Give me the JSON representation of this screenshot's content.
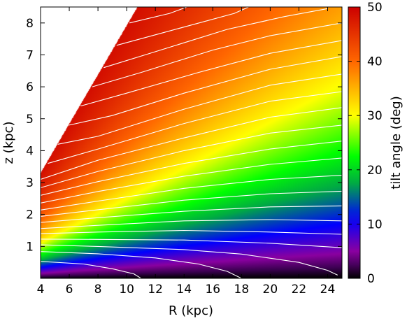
{
  "chart_data": {
    "type": "heatmap",
    "xlabel": "R (kpc)",
    "ylabel": "z (kpc)",
    "colorbar_label": "tilt angle (deg)",
    "xlim": [
      4,
      25
    ],
    "ylim": [
      0,
      8.5
    ],
    "clim": [
      0,
      50
    ],
    "x_ticks": [
      4,
      6,
      8,
      10,
      12,
      14,
      16,
      18,
      20,
      22,
      24
    ],
    "y_ticks": [
      1,
      2,
      3,
      4,
      5,
      6,
      7,
      8
    ],
    "colorbar_ticks": [
      0,
      10,
      20,
      30,
      40,
      50
    ],
    "colormap": [
      "#000000",
      "#3a0050",
      "#8a00a0",
      "#0000ff",
      "#00aa44",
      "#00ff00",
      "#ffff00",
      "#ff6600",
      "#cc0000"
    ],
    "colormap_stops": [
      0,
      0.04,
      0.1,
      0.22,
      0.35,
      0.45,
      0.6,
      0.8,
      1
    ],
    "masked_region": "no data above z = 0.77 * (R - 4) + 3.3 (white)",
    "contour_color": "#ffffff",
    "contours": [
      {
        "level": 1,
        "points": [
          [
            4,
            0.53
          ],
          [
            7,
            0.45
          ],
          [
            9,
            0.3
          ],
          [
            10.5,
            0.14
          ],
          [
            11,
            0.0
          ]
        ]
      },
      {
        "level": 2,
        "points": [
          [
            4,
            0.84
          ],
          [
            8,
            0.77
          ],
          [
            12,
            0.64
          ],
          [
            15,
            0.45
          ],
          [
            17,
            0.22
          ],
          [
            18,
            0.0
          ]
        ]
      },
      {
        "level": 3,
        "points": [
          [
            4,
            1.05
          ],
          [
            8,
            1.0
          ],
          [
            14,
            0.9
          ],
          [
            18,
            0.76
          ],
          [
            22,
            0.5
          ],
          [
            24,
            0.25
          ],
          [
            24.7,
            0.1
          ]
        ]
      },
      {
        "level": 4,
        "points": [
          [
            4,
            1.23
          ],
          [
            8,
            1.22
          ],
          [
            14,
            1.2
          ],
          [
            20,
            1.1
          ],
          [
            25,
            0.96
          ]
        ]
      },
      {
        "level": 5,
        "points": [
          [
            4,
            1.4
          ],
          [
            8,
            1.45
          ],
          [
            14,
            1.5
          ],
          [
            20,
            1.45
          ],
          [
            25,
            1.38
          ]
        ]
      },
      {
        "level": 6,
        "points": [
          [
            4,
            1.56
          ],
          [
            8,
            1.66
          ],
          [
            14,
            1.8
          ],
          [
            20,
            1.84
          ],
          [
            25,
            1.8
          ]
        ]
      },
      {
        "level": 7,
        "points": [
          [
            4,
            1.75
          ],
          [
            8,
            1.9
          ],
          [
            14,
            2.1
          ],
          [
            20,
            2.24
          ],
          [
            25,
            2.27
          ]
        ]
      },
      {
        "level": 8,
        "points": [
          [
            4,
            1.94
          ],
          [
            8,
            2.15
          ],
          [
            14,
            2.45
          ],
          [
            20,
            2.65
          ],
          [
            25,
            2.73
          ]
        ]
      },
      {
        "level": 9,
        "points": [
          [
            4,
            2.14
          ],
          [
            8,
            2.42
          ],
          [
            14,
            2.82
          ],
          [
            20,
            3.1
          ],
          [
            25,
            3.23
          ]
        ]
      },
      {
        "level": 10,
        "points": [
          [
            4,
            2.36
          ],
          [
            8,
            2.72
          ],
          [
            14,
            3.2
          ],
          [
            20,
            3.57
          ],
          [
            25,
            3.77
          ]
        ]
      },
      {
        "level": 11,
        "points": [
          [
            4,
            2.6
          ],
          [
            8,
            3.03
          ],
          [
            14,
            3.6
          ],
          [
            20,
            4.05
          ],
          [
            25,
            4.3
          ]
        ]
      },
      {
        "level": 12,
        "points": [
          [
            4,
            2.84
          ],
          [
            8,
            3.35
          ],
          [
            14,
            4.0
          ],
          [
            20,
            4.55
          ],
          [
            25,
            4.8
          ]
        ]
      },
      {
        "level": 13,
        "points": [
          [
            4,
            3.1
          ],
          [
            8,
            3.7
          ],
          [
            14,
            4.4
          ],
          [
            20,
            5.05
          ],
          [
            25,
            5.35
          ]
        ]
      },
      {
        "level": 14,
        "points": [
          [
            4.5,
            3.6
          ],
          [
            8,
            4.05
          ],
          [
            14,
            4.85
          ],
          [
            20,
            5.55
          ],
          [
            25,
            5.85
          ]
        ]
      },
      {
        "level": 15,
        "points": [
          [
            5.2,
            4.2
          ],
          [
            8,
            4.45
          ],
          [
            14,
            5.3
          ],
          [
            20,
            6.05
          ],
          [
            25,
            6.4
          ]
        ]
      },
      {
        "level": 16,
        "points": [
          [
            6.0,
            4.8
          ],
          [
            9,
            5.1
          ],
          [
            14,
            5.8
          ],
          [
            20,
            6.55
          ],
          [
            25,
            6.95
          ]
        ]
      },
      {
        "level": 17,
        "points": [
          [
            6.8,
            5.4
          ],
          [
            10,
            5.8
          ],
          [
            15,
            6.45
          ],
          [
            20,
            7.05
          ],
          [
            25,
            7.45
          ]
        ]
      },
      {
        "level": 18,
        "points": [
          [
            7.6,
            6.0
          ],
          [
            11,
            6.45
          ],
          [
            16,
            7.15
          ],
          [
            20,
            7.6
          ],
          [
            25,
            8.0
          ]
        ]
      },
      {
        "level": 19,
        "points": [
          [
            8.4,
            6.6
          ],
          [
            12,
            7.1
          ],
          [
            17,
            7.8
          ],
          [
            21,
            8.2
          ],
          [
            24,
            8.45
          ]
        ]
      },
      {
        "level": 20,
        "points": [
          [
            9.3,
            7.3
          ],
          [
            13,
            7.75
          ],
          [
            17.5,
            8.3
          ],
          [
            18.5,
            8.5
          ]
        ]
      },
      {
        "level": 21,
        "points": [
          [
            10.2,
            8.0
          ],
          [
            13,
            8.3
          ],
          [
            14.2,
            8.5
          ]
        ]
      }
    ]
  }
}
